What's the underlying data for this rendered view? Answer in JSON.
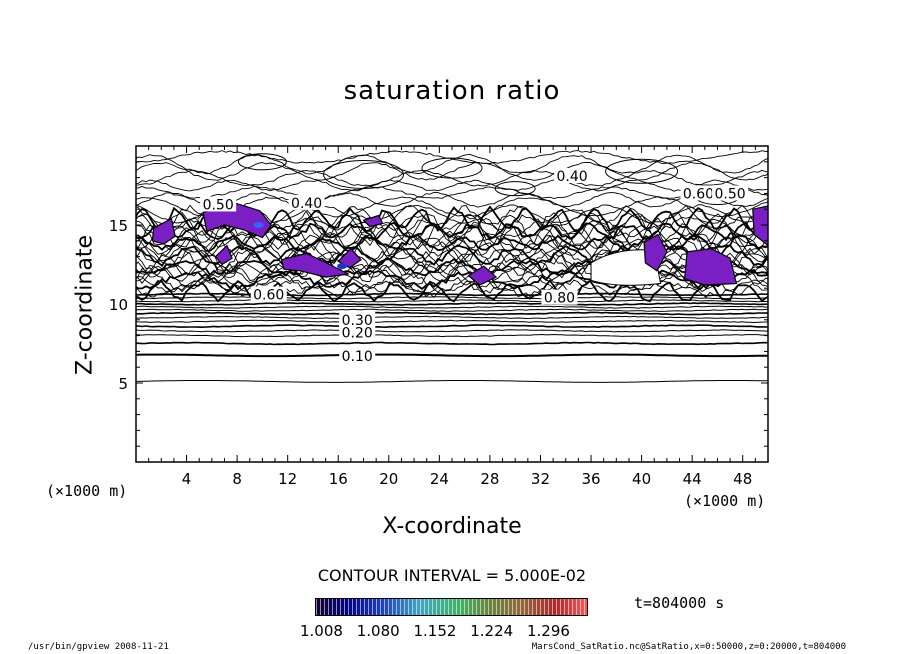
{
  "chart_data": {
    "type": "contour",
    "title": "saturation ratio",
    "xlabel": "X-coordinate",
    "ylabel": "Z-coordinate",
    "x_unit": "(×1000 m)",
    "y_unit": "(×1000 m)",
    "xlim": [
      0,
      50
    ],
    "ylim": [
      0,
      20
    ],
    "x_ticks": [
      "4",
      "8",
      "12",
      "16",
      "20",
      "24",
      "28",
      "32",
      "36",
      "40",
      "44",
      "48"
    ],
    "y_ticks": [
      "5",
      "10",
      "15"
    ],
    "contour_interval_text": "CONTOUR INTERVAL = 5.000E-02",
    "contour_labels": [
      {
        "text": "0.10",
        "x": 17.5,
        "y": 6.7
      },
      {
        "text": "0.20",
        "x": 17.5,
        "y": 8.2
      },
      {
        "text": "0.30",
        "x": 17.5,
        "y": 9.0
      },
      {
        "text": "0.40",
        "x": 34.5,
        "y": 18.1
      },
      {
        "text": "0.40",
        "x": 13.5,
        "y": 16.4
      },
      {
        "text": "0.50",
        "x": 6.5,
        "y": 16.3
      },
      {
        "text": "0.60",
        "x": 44.5,
        "y": 17.0
      },
      {
        "text": "0.50",
        "x": 47.0,
        "y": 17.0
      },
      {
        "text": "0.80",
        "x": 33.5,
        "y": 10.4
      },
      {
        "text": "0.60",
        "x": 10.5,
        "y": 10.6
      }
    ],
    "shaded_regions_note": "saturation ratio > 1",
    "colorbar": {
      "ticks": [
        "1.008",
        "1.080",
        "1.152",
        "1.224",
        "1.296"
      ],
      "range": [
        1.0,
        1.3
      ]
    },
    "time_label": "t=804000 s",
    "footer_left": "/usr/bin/gpview   2008-11-21",
    "footer_right": "MarsCond_SatRatio.nc@SatRatio,x=0:50000,z=0:20000,t=804000"
  }
}
